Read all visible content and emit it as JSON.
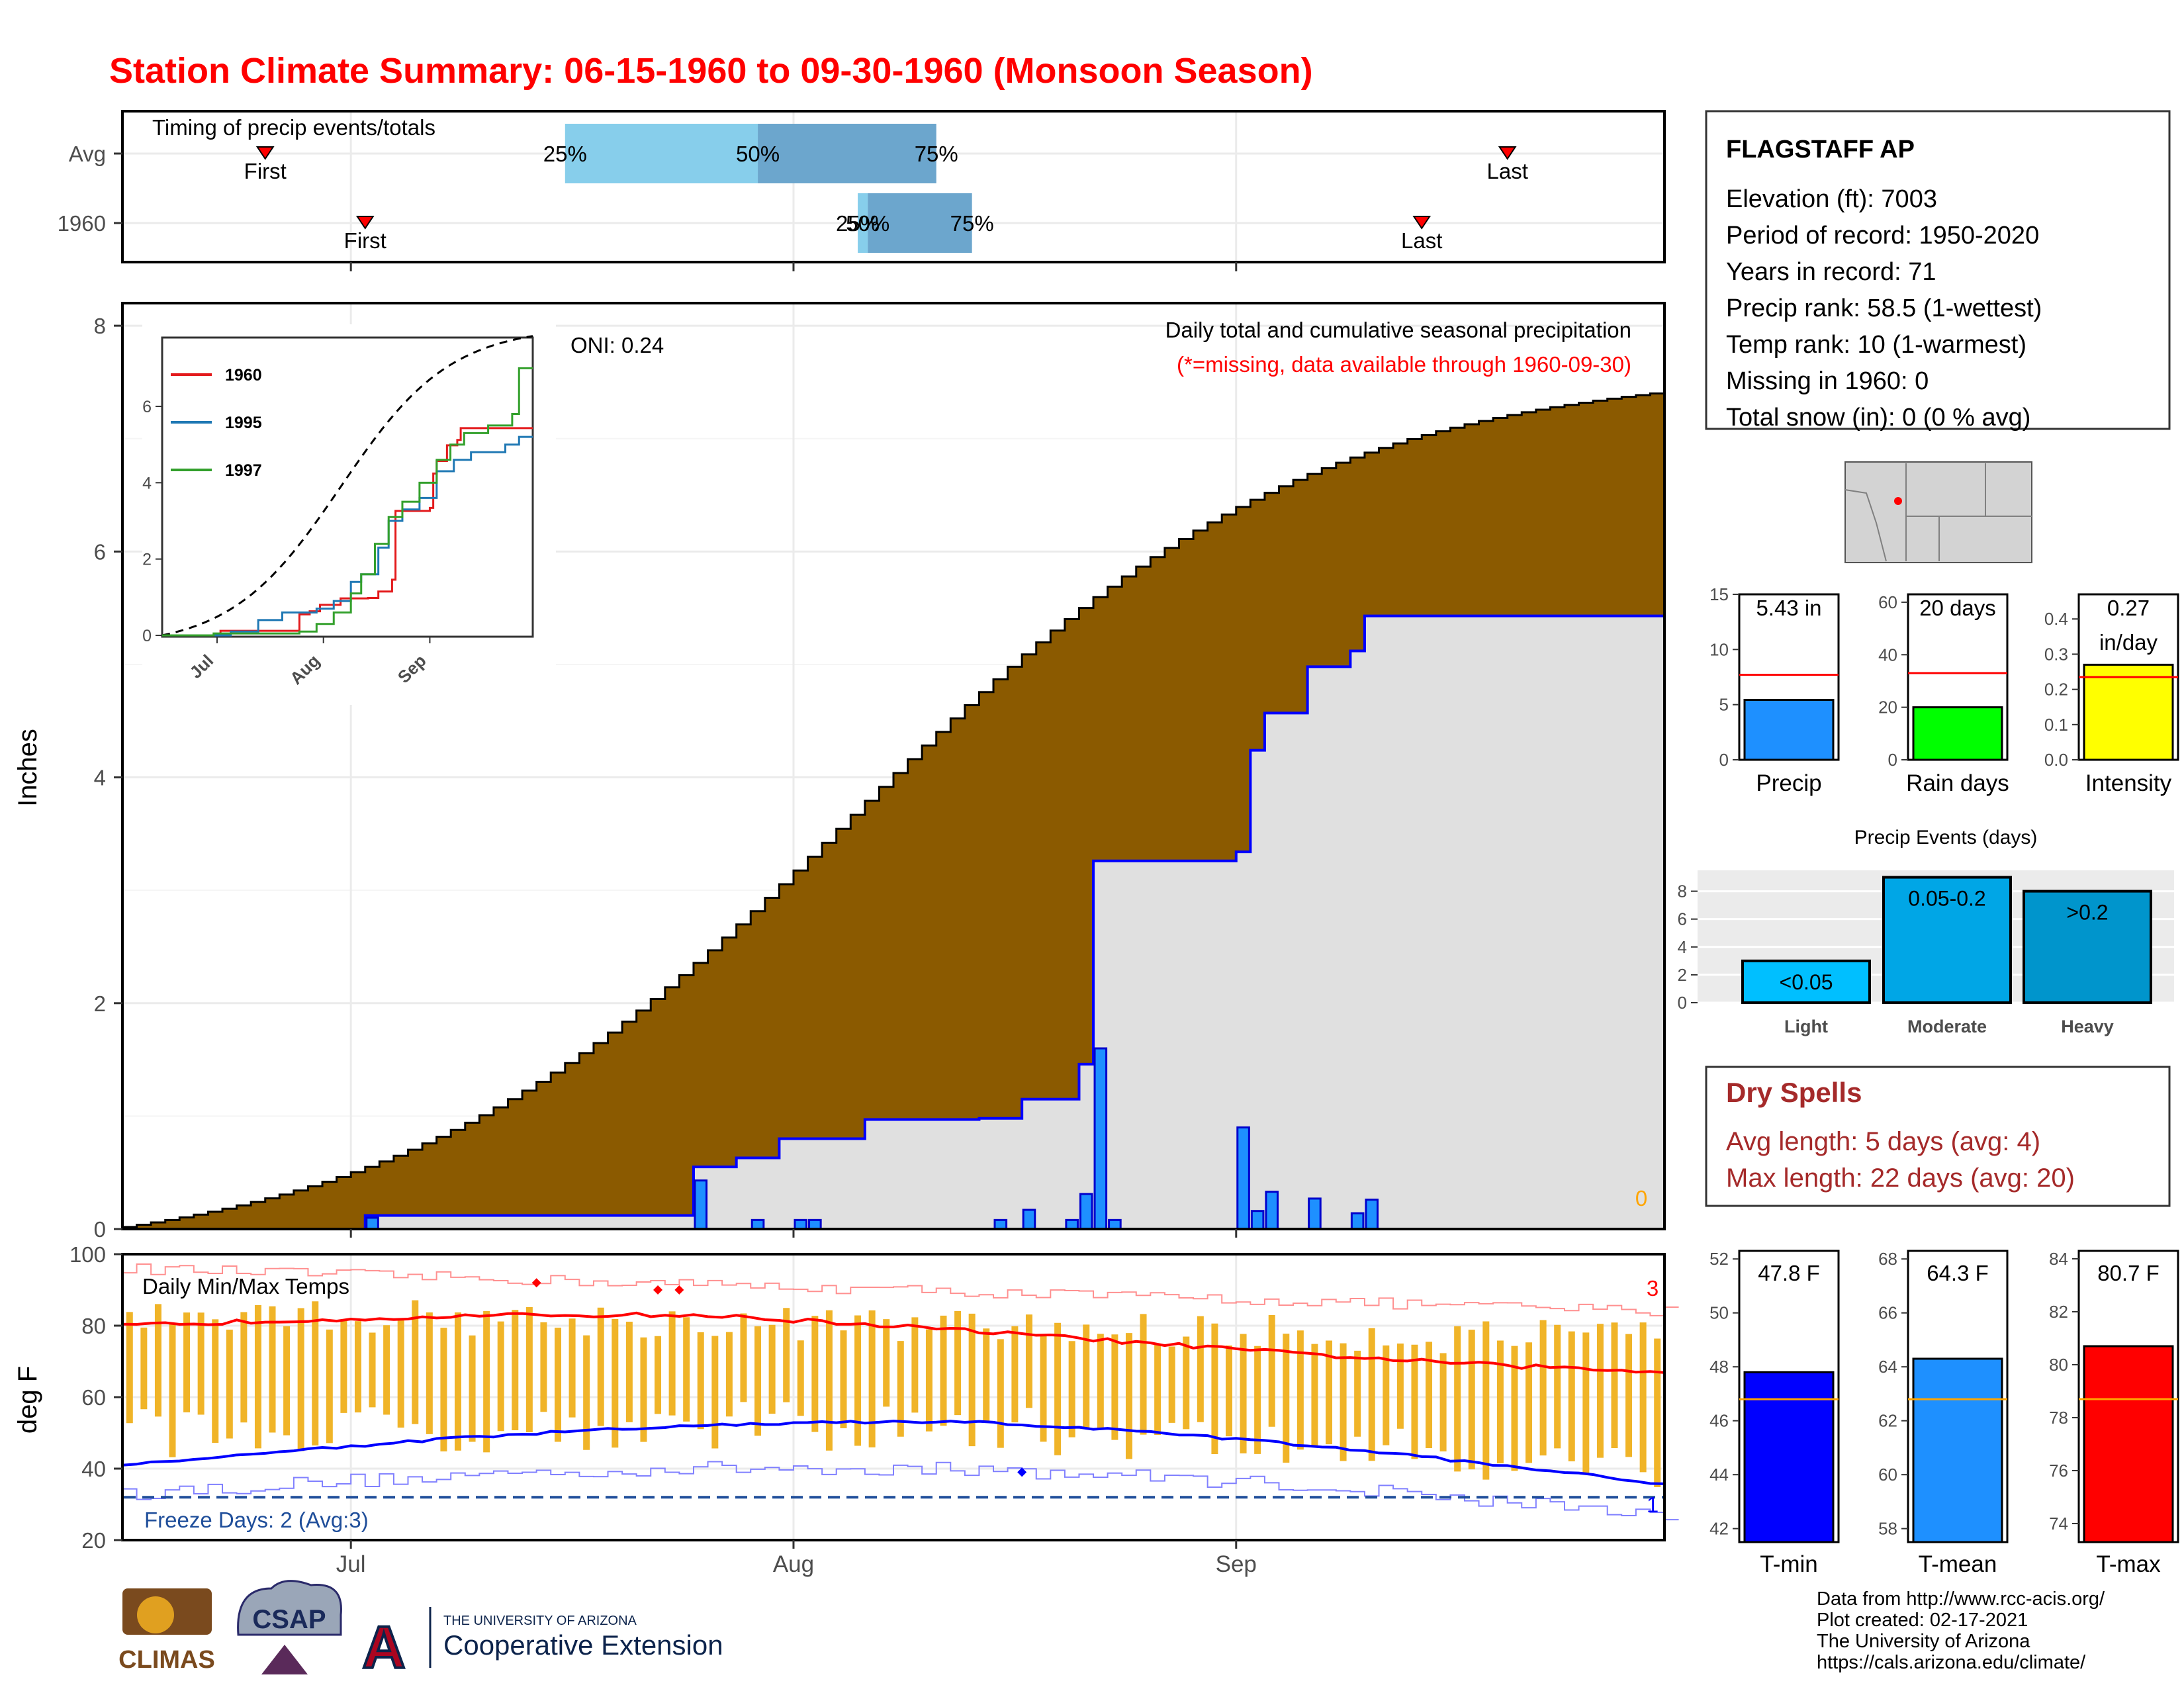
{
  "title": "Station Climate Summary: 06-15-1960 to 09-30-1960 (Monsoon Season)",
  "month_labels": [
    "Jul",
    "Aug",
    "Sep"
  ],
  "timing": {
    "title": "Timing of precip events/totals",
    "rows": [
      {
        "label": "Avg",
        "first_day": 10,
        "last_day": 97,
        "p25_day": 31,
        "p50_day": 44.5,
        "p75_day": 57,
        "first_label": "First",
        "last_label": "Last",
        "p25_label": "25%",
        "p50_label": "50%",
        "p75_label": "75%"
      },
      {
        "label": "1960",
        "first_day": 17,
        "last_day": 91,
        "p25_day": 51.5,
        "p50_day": 52.2,
        "p75_day": 59.5,
        "first_label": "First",
        "last_label": "Last",
        "p25_label": "25%",
        "p50_label": "50%",
        "p75_label": "75%"
      }
    ]
  },
  "precip": {
    "ylabel": "Inches",
    "subtitle": "Daily total and cumulative seasonal precipitation",
    "note": "(*=missing, data available through 1960-09-30)",
    "oni": "ONI: 0.24",
    "corner_value": "0",
    "yticks": [
      "0",
      "2",
      "4",
      "6",
      "8"
    ]
  },
  "inset": {
    "legend": [
      {
        "name": "1960",
        "color": "#e31a1c"
      },
      {
        "name": "1995",
        "color": "#1f78b4"
      },
      {
        "name": "1997",
        "color": "#33a02c"
      }
    ],
    "yticks": [
      "0",
      "2",
      "4",
      "6"
    ],
    "xticks": [
      "Jul",
      "Aug",
      "Sep"
    ]
  },
  "temps": {
    "title": "Daily Min/Max Temps",
    "ylabel": "deg F",
    "yticks": [
      "20",
      "40",
      "60",
      "80",
      "100"
    ],
    "freeze_text": "Freeze Days: 2 (Avg:3)",
    "count_top": "3",
    "count_bottom": "1"
  },
  "station": {
    "name": "FLAGSTAFF AP",
    "lines": [
      "Elevation (ft): 7003",
      "Period of record: 1950-2020",
      "Years in record: 71",
      "Precip rank: 58.5 (1-wettest)",
      "Temp rank: 10 (1-warmest)",
      "Missing in 1960: 0",
      "Total snow (in): 0 (0 % avg)"
    ]
  },
  "mini_bars": [
    {
      "label": "Precip",
      "value_text": "5.43 in",
      "value": 5.43,
      "avg": 7.7,
      "ymax": 15,
      "yticks": [
        "0",
        "5",
        "10",
        "15"
      ],
      "tick_vals": [
        0,
        5,
        10,
        15
      ],
      "color": "#1e90ff",
      "avg_color": "#ff0000"
    },
    {
      "label": "Rain days",
      "value_text": "20 days",
      "value": 20,
      "avg": 33,
      "ymax": 63,
      "yticks": [
        "0",
        "20",
        "40",
        "60"
      ],
      "tick_vals": [
        0,
        20,
        40,
        60
      ],
      "color": "#00ff00",
      "avg_color": "#ff0000"
    },
    {
      "label": "Intensity",
      "value_text": "0.27\nin/day",
      "value": 0.27,
      "avg": 0.235,
      "ymax": 0.47,
      "yticks": [
        "0.0",
        "0.1",
        "0.2",
        "0.3",
        "0.4"
      ],
      "tick_vals": [
        0,
        0.1,
        0.2,
        0.3,
        0.4
      ],
      "color": "#ffff00",
      "avg_color": "#ff0000"
    }
  ],
  "events": {
    "title": "Precip Events (days)",
    "bars": [
      {
        "label": "Light",
        "inner": "<0.05",
        "value": 3,
        "color": "#00bfff"
      },
      {
        "label": "Moderate",
        "inner": "0.05-0.2",
        "value": 9,
        "color": "#00a6e6"
      },
      {
        "label": "Heavy",
        "inner": ">0.2",
        "value": 8,
        "color": "#0095cc"
      }
    ],
    "yticks": [
      "0",
      "2",
      "4",
      "6",
      "8"
    ]
  },
  "dry_spells": {
    "title": "Dry Spells",
    "lines": [
      "Avg length: 5 days (avg: 4)",
      "Max length: 22 days (avg: 20)"
    ]
  },
  "temp_bars": [
    {
      "label": "T-min",
      "value_text": "47.8 F",
      "value": 47.8,
      "avg": 46.8,
      "ymin": 41.5,
      "ymax": 52.3,
      "yticks": [
        "42",
        "44",
        "46",
        "48",
        "50",
        "52"
      ],
      "tick_vals": [
        42,
        44,
        46,
        48,
        50,
        52
      ],
      "color": "#0000ff"
    },
    {
      "label": "T-mean",
      "value_text": "64.3 F",
      "value": 64.3,
      "avg": 62.8,
      "ymin": 57.5,
      "ymax": 68.3,
      "yticks": [
        "58",
        "60",
        "62",
        "64",
        "66",
        "68"
      ],
      "tick_vals": [
        58,
        60,
        62,
        64,
        66,
        68
      ],
      "color": "#1e90ff"
    },
    {
      "label": "T-max",
      "value_text": "80.7 F",
      "value": 80.7,
      "avg": 78.7,
      "ymin": 73.3,
      "ymax": 84.3,
      "yticks": [
        "74",
        "76",
        "78",
        "80",
        "82",
        "84"
      ],
      "tick_vals": [
        74,
        76,
        78,
        80,
        82,
        84
      ],
      "color": "#ff0000"
    }
  ],
  "footer": {
    "lines": [
      "Data from http://www.rcc-acis.org/",
      "Plot created: 02-17-2021",
      "The University of Arizona",
      "https://cals.arizona.edu/climate/"
    ],
    "logo_climas": "CLIMAS",
    "logo_csap": "CSAP",
    "ua_small": "THE UNIVERSITY OF ARIZONA",
    "ua_big": "Cooperative Extension"
  },
  "chart_data": {
    "type": "area",
    "x_label": "",
    "days_start": "1960-06-15",
    "daily_precip_1960": [
      [
        17,
        0.1
      ],
      [
        40,
        0.43
      ],
      [
        44,
        0.08
      ],
      [
        47,
        0.08
      ],
      [
        48,
        0.08
      ],
      [
        61,
        0.08
      ],
      [
        63,
        0.17
      ],
      [
        66,
        0.08
      ],
      [
        67,
        0.31
      ],
      [
        68,
        1.6
      ],
      [
        69,
        0.08
      ],
      [
        78,
        0.9
      ],
      [
        79,
        0.16
      ],
      [
        80,
        0.33
      ],
      [
        83,
        0.27
      ],
      [
        86,
        0.14
      ],
      [
        87,
        0.26
      ]
    ],
    "cumulative_1960": [
      [
        0,
        0
      ],
      [
        17,
        0.12
      ],
      [
        40,
        0.55
      ],
      [
        43,
        0.63
      ],
      [
        46,
        0.8
      ],
      [
        52,
        0.97
      ],
      [
        60,
        0.98
      ],
      [
        63,
        1.15
      ],
      [
        67,
        1.46
      ],
      [
        68,
        3.26
      ],
      [
        78,
        3.34
      ],
      [
        79,
        4.24
      ],
      [
        80,
        4.57
      ],
      [
        83,
        4.98
      ],
      [
        86,
        5.12
      ],
      [
        87,
        5.43
      ],
      [
        100,
        5.43
      ]
    ],
    "avg_cumulative_end": 7.4,
    "tmax_avg_end": 71,
    "tmin_avg_end": 36,
    "freeze_line": 32
  }
}
